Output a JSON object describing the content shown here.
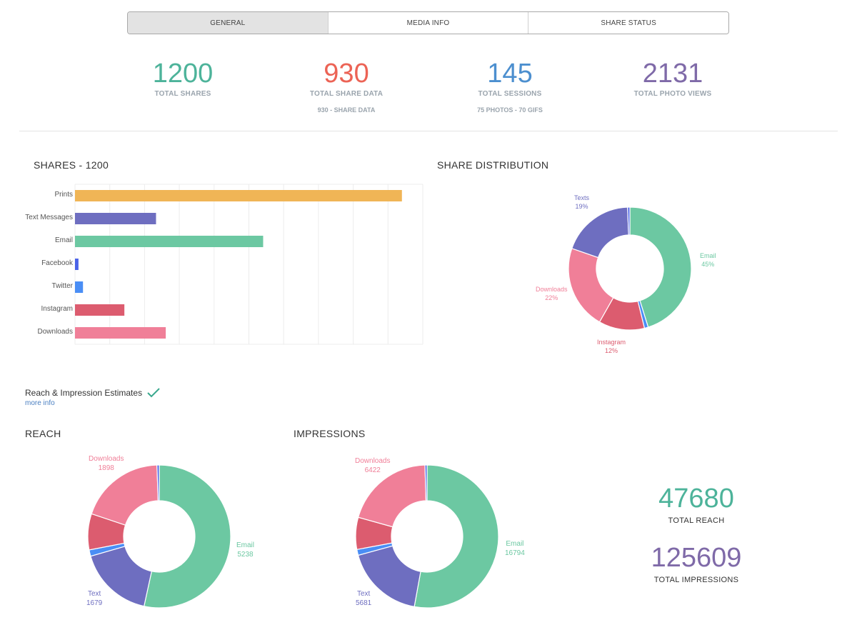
{
  "tabs": [
    {
      "label": "GENERAL",
      "active": true
    },
    {
      "label": "MEDIA INFO",
      "active": false
    },
    {
      "label": "SHARE STATUS",
      "active": false
    }
  ],
  "stats": [
    {
      "value": "1200",
      "label": "TOTAL SHARES",
      "sub": "",
      "color": "#4db39a"
    },
    {
      "value": "930",
      "label": "TOTAL SHARE DATA",
      "sub": "930 - SHARE DATA",
      "color": "#ec6355"
    },
    {
      "value": "145",
      "label": "TOTAL SESSIONS",
      "sub": "75 PHOTOS - 70 GIFS",
      "color": "#4c8fcf"
    },
    {
      "value": "2131",
      "label": "TOTAL PHOTO VIEWS",
      "sub": "",
      "color": "#7f6aa8"
    }
  ],
  "shares_title": "SHARES - 1200",
  "distribution_title": "SHARE DISTRIBUTION",
  "estimates": {
    "label": "Reach & Impression Estimates",
    "more_info": "more info"
  },
  "reach_title": "REACH",
  "impressions_title": "IMPRESSIONS",
  "totals": {
    "reach_value": "47680",
    "reach_label": "TOTAL REACH",
    "reach_color": "#4db39a",
    "impressions_value": "125609",
    "impressions_label": "TOTAL IMPRESSIONS",
    "impressions_color": "#7f6aa8"
  },
  "chart_data": [
    {
      "type": "bar",
      "orientation": "horizontal",
      "title": "SHARES - 1200",
      "categories": [
        "Prints",
        "Text Messages",
        "Email",
        "Facebook",
        "Twitter",
        "Instagram",
        "Downloads"
      ],
      "values": [
        94,
        23.3,
        54.1,
        1,
        2.3,
        14.2,
        26.1
      ],
      "value_units": "percent of axis max (no axis labels shown)",
      "colors": [
        "#f0b556",
        "#6e6ec0",
        "#6cc8a2",
        "#4a63e8",
        "#4a8ef5",
        "#dc5c6f",
        "#f07f98"
      ],
      "xlim": [
        0,
        100
      ],
      "grid": true,
      "gridlines": 10,
      "xlabel": "",
      "ylabel": ""
    },
    {
      "type": "pie",
      "donut": true,
      "title": "SHARE DISTRIBUTION",
      "slices": [
        {
          "name": "Email",
          "value": 45,
          "label": "Email",
          "value_label": "45%",
          "color": "#6cc8a2",
          "show_label": true
        },
        {
          "name": "Twitter",
          "value": 1,
          "color": "#4a8ef5",
          "show_label": false
        },
        {
          "name": "Instagram",
          "value": 12,
          "label": "Instagram",
          "value_label": "12%",
          "color": "#dc5c6f",
          "show_label": true
        },
        {
          "name": "Downloads",
          "value": 22,
          "label": "Downloads",
          "value_label": "22%",
          "color": "#f07f98",
          "show_label": true
        },
        {
          "name": "Texts",
          "value": 19,
          "label": "Texts",
          "value_label": "19%",
          "color": "#6e6ec0",
          "show_label": true
        },
        {
          "name": "Facebook",
          "value": 0.6,
          "color": "#4a63e8",
          "show_label": false
        }
      ]
    },
    {
      "type": "pie",
      "donut": true,
      "title": "REACH",
      "slices": [
        {
          "name": "Email",
          "value": 5238,
          "label": "Email",
          "value_label": "5238",
          "color": "#6cc8a2",
          "show_label": true
        },
        {
          "name": "Text",
          "value": 1679,
          "label": "Text",
          "value_label": "1679",
          "color": "#6e6ec0",
          "show_label": true
        },
        {
          "name": "Twitter",
          "value": 140,
          "color": "#4a8ef5",
          "show_label": false
        },
        {
          "name": "Instagram",
          "value": 800,
          "color": "#dc5c6f",
          "show_label": false
        },
        {
          "name": "Downloads",
          "value": 1898,
          "label": "Downloads",
          "value_label": "1898",
          "color": "#f07f98",
          "show_label": true
        },
        {
          "name": "Facebook",
          "value": 50,
          "color": "#4a63e8",
          "show_label": false
        }
      ]
    },
    {
      "type": "pie",
      "donut": true,
      "title": "IMPRESSIONS",
      "slices": [
        {
          "name": "Email",
          "value": 16794,
          "label": "Email",
          "value_label": "16794",
          "color": "#6cc8a2",
          "show_label": true
        },
        {
          "name": "Text",
          "value": 5681,
          "label": "Text",
          "value_label": "5681",
          "color": "#6e6ec0",
          "show_label": true
        },
        {
          "name": "Twitter",
          "value": 420,
          "color": "#4a8ef5",
          "show_label": false
        },
        {
          "name": "Instagram",
          "value": 2300,
          "color": "#dc5c6f",
          "show_label": false
        },
        {
          "name": "Downloads",
          "value": 6422,
          "label": "Downloads",
          "value_label": "6422",
          "color": "#f07f98",
          "show_label": true
        },
        {
          "name": "Facebook",
          "value": 150,
          "color": "#4a63e8",
          "show_label": false
        }
      ]
    }
  ]
}
